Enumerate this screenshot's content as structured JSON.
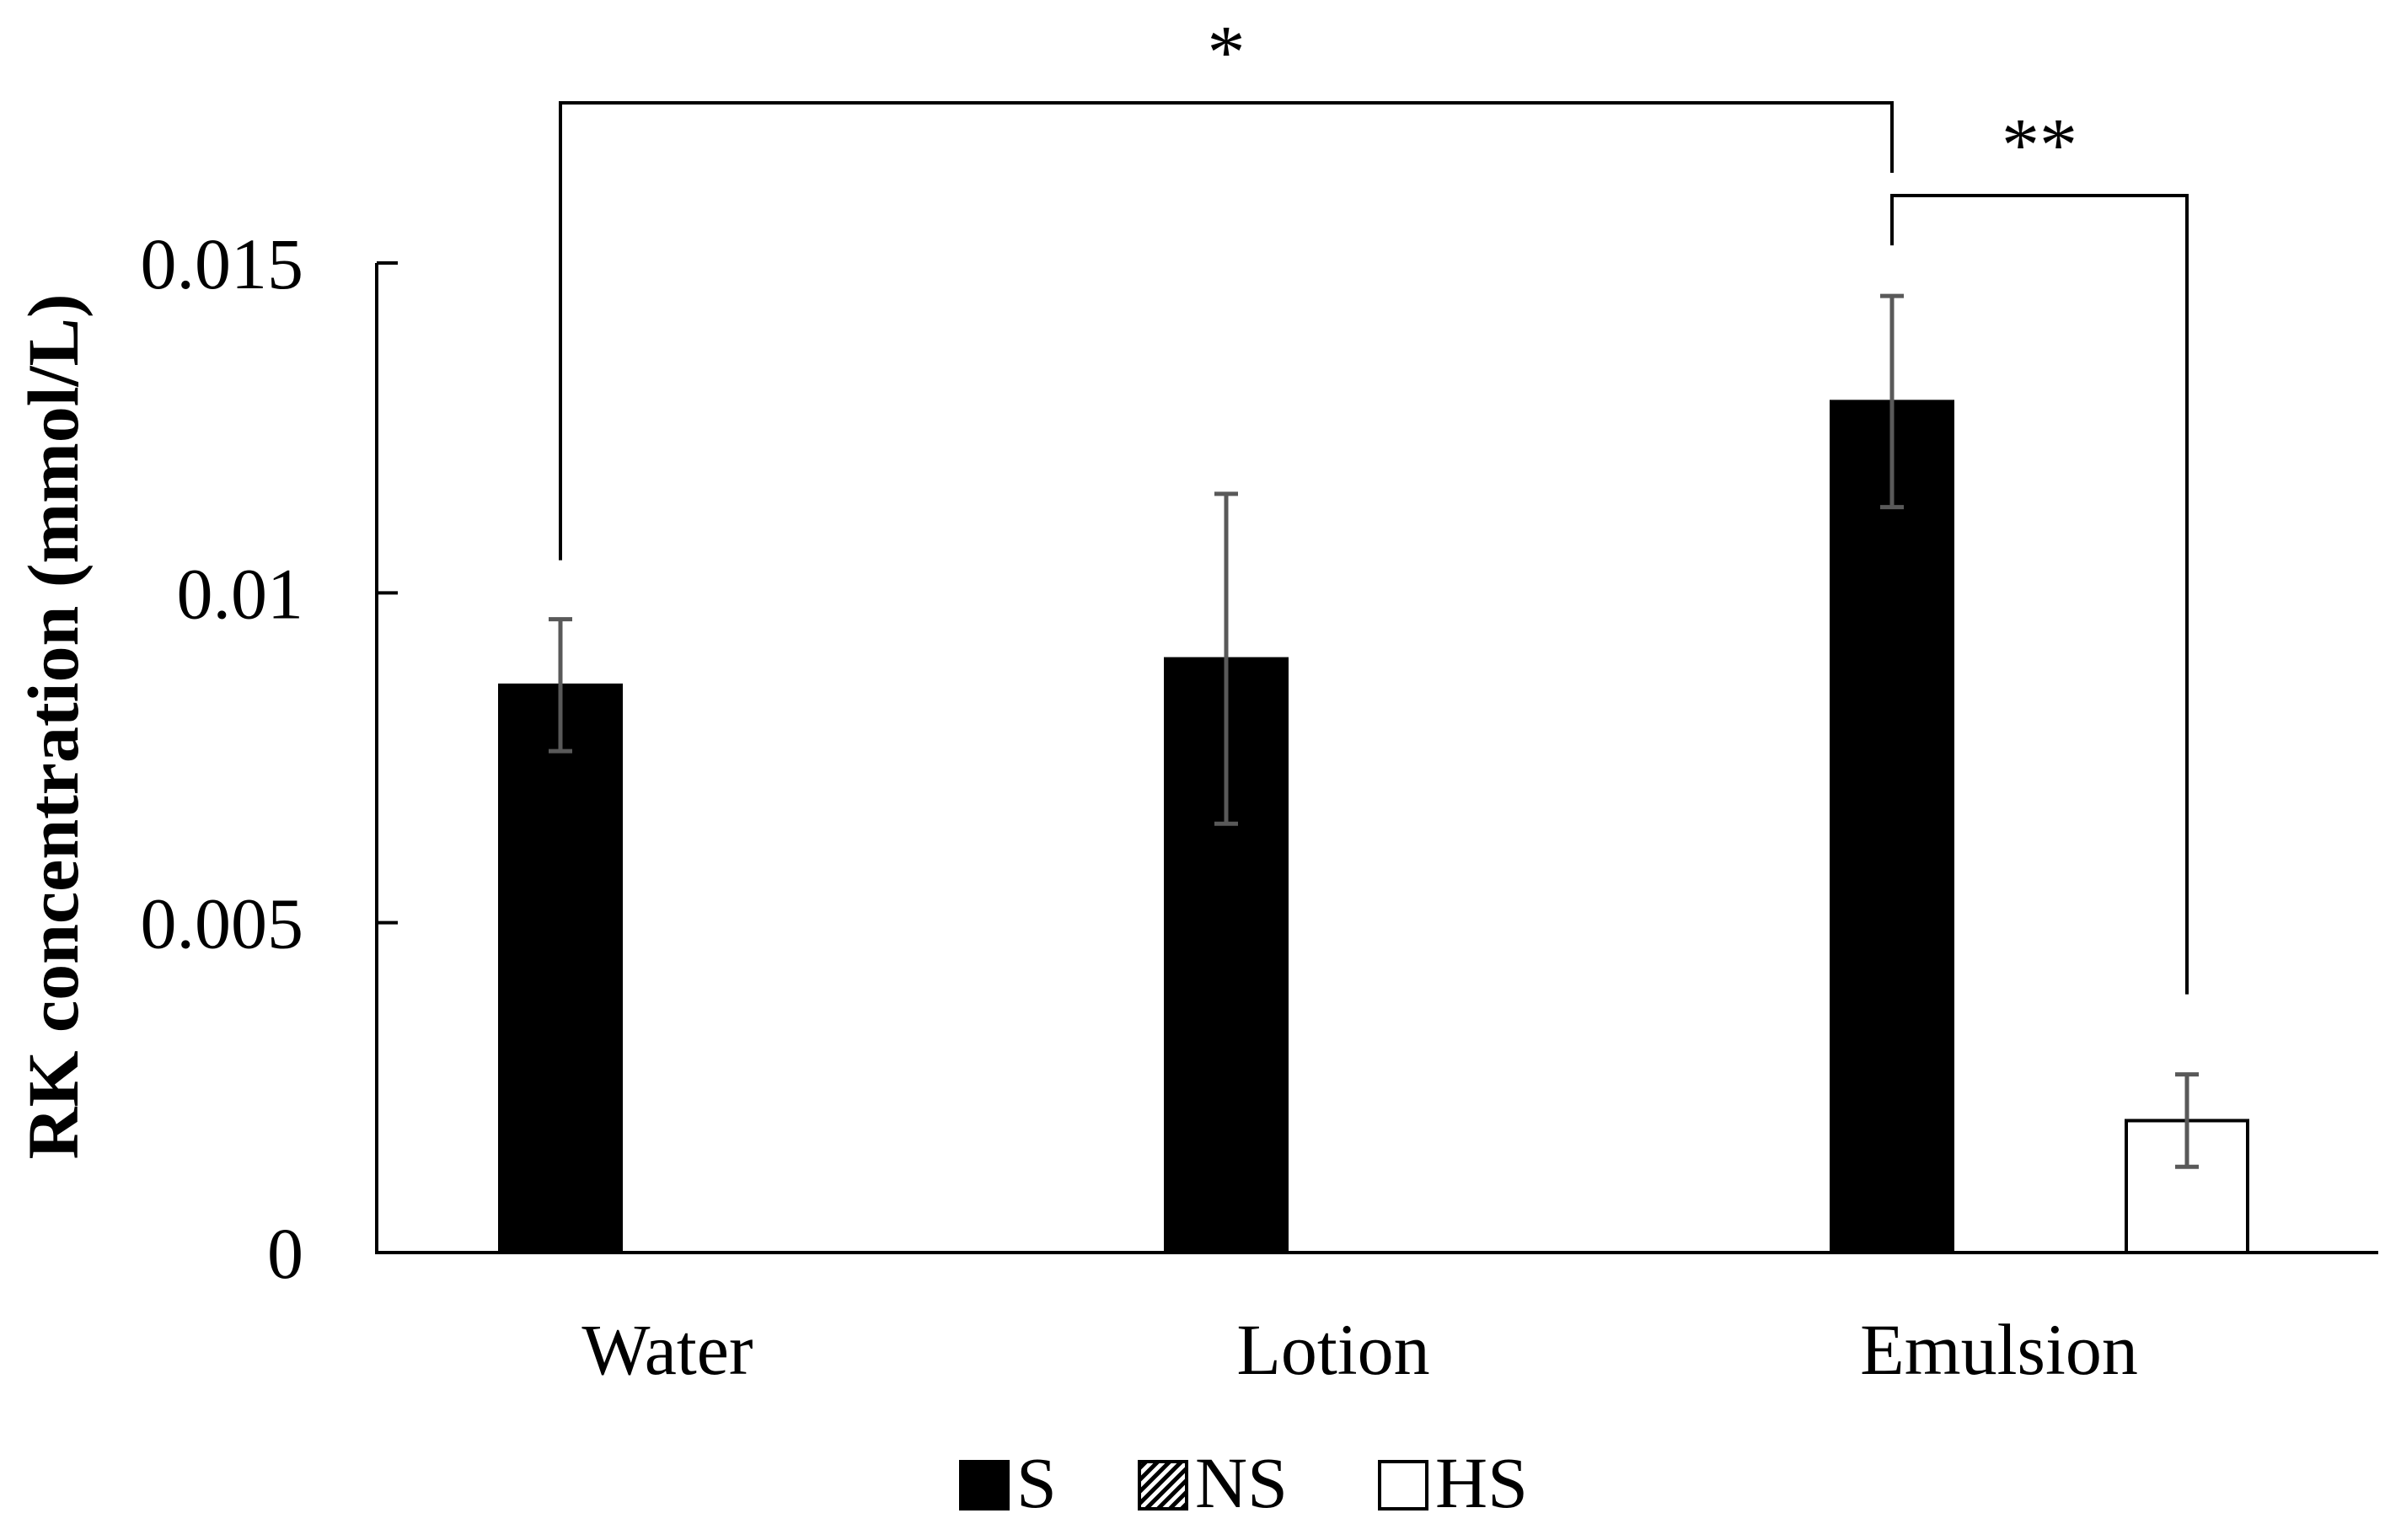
{
  "chart_data": {
    "type": "bar",
    "title": "",
    "xlabel": "",
    "ylabel": "RK concentration (mmol/L)",
    "ylim": [
      0,
      0.015
    ],
    "yticks": [
      {
        "value": 0,
        "label": "0"
      },
      {
        "value": 0.005,
        "label": "0.005"
      },
      {
        "value": 0.01,
        "label": "0.01"
      },
      {
        "value": 0.015,
        "label": "0.015"
      }
    ],
    "grid": false,
    "categories": [
      "Water",
      "Lotion",
      "Emulsion"
    ],
    "series": [
      {
        "name": "S",
        "fill": "#000000",
        "pattern": "solid",
        "values": [
          0.0086,
          0.009,
          0.0129
        ],
        "errors": [
          0.001,
          0.0025,
          0.0016
        ]
      },
      {
        "name": "NS",
        "fill": "#000000",
        "pattern": "diagonal",
        "values": [
          null,
          null,
          null
        ],
        "errors": [
          null,
          null,
          null
        ]
      },
      {
        "name": "HS",
        "fill": "#ffffff",
        "pattern": "open",
        "values": [
          null,
          null,
          0.002
        ],
        "errors": [
          null,
          null,
          0.0007
        ]
      }
    ],
    "legend": {
      "placement": "bottom-center"
    },
    "annotations": [
      {
        "label": "*",
        "from": {
          "category": "Water",
          "series": "S"
        },
        "to": {
          "category": "Emulsion",
          "series": "S"
        }
      },
      {
        "label": "**",
        "from": {
          "category": "Emulsion",
          "series": "S"
        },
        "to": {
          "category": "Emulsion",
          "series": "HS"
        }
      }
    ]
  }
}
